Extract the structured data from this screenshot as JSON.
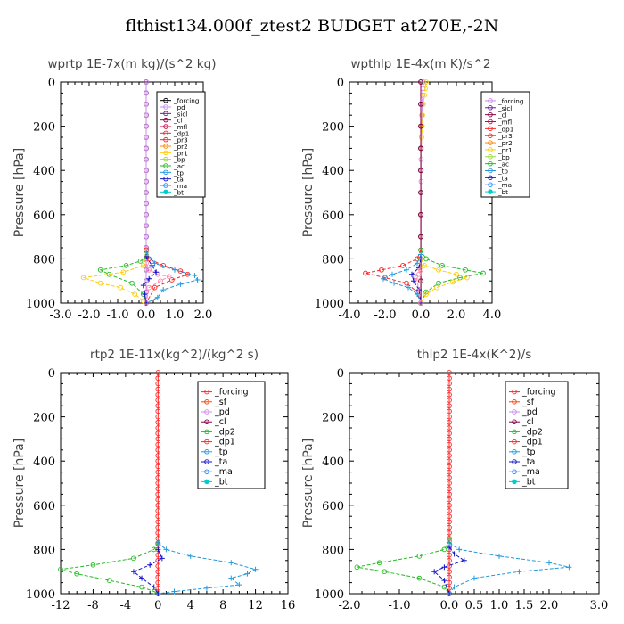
{
  "figure_title": "flthist134.000f_ztest2  BUDGET at270E,-2N",
  "chart_data": [
    {
      "type": "line",
      "title": "wprtp   1E-7x(m kg)/(s^2 kg)",
      "ylabel": "Pressure [hPa]",
      "xlim": [
        -3.0,
        2.0
      ],
      "ylim": [
        1000,
        0
      ],
      "xticks": [
        "-3.0",
        "-1.0",
        "-2.0",
        "0.0",
        "1.0",
        "2.0"
      ],
      "xtick_values": [
        -3,
        -1,
        -2,
        0,
        1,
        2
      ],
      "yticks": [
        "0",
        "200",
        "400",
        "600",
        "800",
        "1000"
      ],
      "ytick_values": [
        0,
        200,
        400,
        600,
        800,
        1000
      ],
      "legend": [
        "_forcing",
        "_pd",
        "_sicl",
        "_cl",
        "_mfl",
        "_dp1",
        "_pr3",
        "_pr2",
        "_pr1",
        "_bp",
        "_ac",
        "_tp",
        "_ta",
        "_ma",
        "_bt"
      ],
      "series": [
        {
          "name": "_forcing",
          "color": "#000000",
          "marker": "circle",
          "x": [
            0,
            0,
            0,
            0,
            0,
            0,
            0,
            0,
            0,
            0,
            0,
            0,
            0,
            0,
            0,
            0,
            0,
            0,
            0,
            0,
            0
          ],
          "y": [
            0,
            50,
            100,
            150,
            200,
            250,
            300,
            350,
            400,
            450,
            500,
            550,
            600,
            650,
            700,
            750,
            800,
            850,
            900,
            950,
            1000
          ]
        },
        {
          "name": "_cl",
          "color": "#8b0045",
          "marker": "circle",
          "x": [
            0,
            0,
            0,
            0,
            0,
            0,
            0,
            0,
            0,
            0,
            0,
            0,
            0,
            0,
            0,
            0,
            0,
            0,
            0,
            0,
            0
          ],
          "y": [
            0,
            50,
            100,
            150,
            200,
            250,
            300,
            350,
            400,
            450,
            500,
            550,
            600,
            650,
            700,
            750,
            800,
            850,
            900,
            950,
            1000
          ]
        },
        {
          "name": "_pd",
          "color": "#cc88ee",
          "marker": "circle",
          "x": [
            0,
            0,
            0,
            0,
            0,
            0,
            0,
            0,
            0,
            0,
            0,
            0,
            0,
            0,
            0,
            0,
            0,
            0,
            0,
            0,
            0
          ],
          "y": [
            0,
            50,
            100,
            150,
            200,
            250,
            300,
            350,
            400,
            450,
            500,
            550,
            600,
            650,
            700,
            750,
            800,
            850,
            900,
            950,
            1000
          ]
        },
        {
          "name": "_ac",
          "color": "#22bb22",
          "marker": "circle",
          "x": [
            0,
            0,
            -0.2,
            -0.7,
            -1.6,
            -1.3,
            -0.5,
            -0.1,
            0
          ],
          "y": [
            760,
            790,
            810,
            830,
            850,
            870,
            910,
            960,
            1000
          ]
        },
        {
          "name": "_pr1",
          "color": "#ffcc00",
          "marker": "circle",
          "x": [
            0,
            -0.1,
            -0.8,
            -2.2,
            -1.6,
            -0.9,
            -0.4,
            -0.1,
            0
          ],
          "y": [
            780,
            830,
            860,
            885,
            910,
            930,
            960,
            990,
            1000
          ]
        },
        {
          "name": "_dp1",
          "color": "#ff2222",
          "marker": "circle",
          "x": [
            0,
            0.1,
            0.6,
            1.2,
            1.45,
            0.9,
            0.3,
            0
          ],
          "y": [
            760,
            800,
            830,
            855,
            870,
            895,
            930,
            1000
          ]
        },
        {
          "name": "_bp",
          "color": "#ff88aa",
          "marker": "circle",
          "x": [
            0,
            0.1,
            0.4,
            0.8,
            0.5,
            0.1,
            0
          ],
          "y": [
            820,
            850,
            870,
            880,
            900,
            930,
            1000
          ]
        },
        {
          "name": "_tp",
          "color": "#2299dd",
          "marker": "star",
          "x": [
            0,
            0.3,
            1.0,
            1.7,
            1.8,
            1.2,
            0.6,
            0.4,
            0
          ],
          "y": [
            770,
            820,
            850,
            875,
            895,
            915,
            940,
            975,
            1000
          ]
        },
        {
          "name": "_ta",
          "color": "#1111cc",
          "marker": "plus",
          "x": [
            0,
            0.2,
            0.35,
            0.1,
            -0.1,
            -0.05,
            0
          ],
          "y": [
            790,
            830,
            860,
            890,
            920,
            960,
            1000
          ]
        }
      ]
    },
    {
      "type": "line",
      "title": "wpthlp   1E-4x(m K)/s^2",
      "ylabel": "Pressure [hPa]",
      "xlim": [
        -4.0,
        4.0
      ],
      "ylim": [
        1000,
        0
      ],
      "xticks": [
        "-4.0",
        "-2.0",
        "0.0",
        "2.0",
        "4.0"
      ],
      "xtick_values": [
        -4,
        -2,
        0,
        2,
        4
      ],
      "yticks": [
        "0",
        "200",
        "400",
        "600",
        "800",
        "1000"
      ],
      "ytick_values": [
        0,
        200,
        400,
        600,
        800,
        1000
      ],
      "legend": [
        "_forcing",
        "_sicl",
        "_cl",
        "_mfl",
        "_dp1",
        "_pr3",
        "_pr2",
        "_pr1",
        "_bp",
        "_ac",
        "_tp",
        "_ta",
        "_ma",
        "_bt"
      ],
      "series": [
        {
          "name": "_pd",
          "color": "#cc88ee",
          "marker": "circle",
          "x": [
            0.15,
            0.12,
            0.1,
            0.08,
            0.06,
            0.05,
            0.04,
            0.03,
            0.02,
            0.02,
            0.02,
            0.02,
            0.02,
            0.02,
            0.02,
            0.02,
            0.02
          ],
          "y": [
            0,
            30,
            60,
            100,
            150,
            200,
            250,
            300,
            350,
            400,
            450,
            500,
            600,
            700,
            800,
            900,
            1000
          ]
        },
        {
          "name": "_pr1",
          "color": "#ffcc00",
          "marker": "circle",
          "x": [
            0.3,
            0.25,
            0.2,
            0.15,
            0.1,
            0.08,
            0.05,
            0.03,
            0.02,
            0.01,
            0,
            0,
            0,
            0,
            0,
            0
          ],
          "y": [
            0,
            30,
            60,
            100,
            150,
            200,
            250,
            300,
            400,
            500,
            600,
            700,
            800,
            850,
            900,
            1000
          ]
        },
        {
          "name": "_forcing",
          "color": "#000000",
          "marker": "circle",
          "x": [
            0,
            0,
            0,
            0,
            0,
            0,
            0,
            0,
            0,
            0,
            0
          ],
          "y": [
            0,
            100,
            200,
            300,
            400,
            500,
            600,
            700,
            800,
            900,
            1000
          ]
        },
        {
          "name": "_cl",
          "color": "#8b0045",
          "marker": "circle",
          "x": [
            0,
            0,
            0,
            0,
            0,
            0,
            0,
            0,
            0,
            0,
            0
          ],
          "y": [
            0,
            100,
            200,
            300,
            400,
            500,
            600,
            700,
            800,
            900,
            1000
          ]
        },
        {
          "name": "_dp1",
          "color": "#ff2222",
          "marker": "circle",
          "x": [
            0,
            -0.2,
            -1.0,
            -2.2,
            -3.1,
            -2.0,
            -0.8,
            -0.2,
            0
          ],
          "y": [
            760,
            800,
            830,
            850,
            865,
            885,
            910,
            950,
            1000
          ]
        },
        {
          "name": "_ac",
          "color": "#22bb22",
          "marker": "circle",
          "x": [
            0,
            0.3,
            1.2,
            2.5,
            3.5,
            2.2,
            1.0,
            0.3,
            0
          ],
          "y": [
            760,
            800,
            830,
            850,
            865,
            885,
            910,
            950,
            1000
          ]
        },
        {
          "name": "_pr3",
          "color": "#ffcc00",
          "marker": "circle",
          "x": [
            0,
            0.2,
            1.0,
            2.0,
            2.6,
            1.8,
            0.9,
            0.3,
            0
          ],
          "y": [
            800,
            830,
            850,
            870,
            885,
            905,
            930,
            960,
            1000
          ]
        },
        {
          "name": "_tp",
          "color": "#2299dd",
          "marker": "star",
          "x": [
            0,
            -0.2,
            -0.8,
            -1.6,
            -2.1,
            -1.5,
            -0.7,
            -0.2,
            0
          ],
          "y": [
            780,
            820,
            850,
            870,
            890,
            910,
            930,
            960,
            1000
          ]
        },
        {
          "name": "_ta",
          "color": "#1111cc",
          "marker": "plus",
          "x": [
            0,
            -0.1,
            -0.5,
            -0.4,
            -0.1,
            0
          ],
          "y": [
            800,
            840,
            870,
            900,
            940,
            1000
          ]
        },
        {
          "name": "_bp",
          "color": "#ff88aa",
          "marker": "circle",
          "x": [
            0,
            -0.1,
            -0.3,
            -0.2,
            0
          ],
          "y": [
            850,
            870,
            880,
            900,
            1000
          ]
        }
      ]
    },
    {
      "type": "line",
      "title": "rtp2   1E-11x(kg^2)/(kg^2 s)",
      "ylabel": "Pressure [hPa]",
      "xlim": [
        -12,
        16
      ],
      "ylim": [
        1000,
        0
      ],
      "xticks": [
        "-12",
        "-8",
        "-4",
        "0",
        "4",
        "8",
        "12",
        "16"
      ],
      "xtick_values": [
        -12,
        -8,
        -4,
        0,
        4,
        8,
        12,
        16
      ],
      "yticks": [
        "0",
        "200",
        "400",
        "600",
        "800",
        "1000"
      ],
      "ytick_values": [
        0,
        200,
        400,
        600,
        800,
        1000
      ],
      "legend": [
        "_forcing",
        "_sf",
        "_pd",
        "_cl",
        "_dp2",
        "_dp1",
        "_tp",
        "_ta",
        "_ma",
        "_bt"
      ],
      "series": [
        {
          "name": "_forcing",
          "color": "#ff2222",
          "marker": "circle",
          "x": [
            0,
            0,
            0,
            0,
            0,
            0,
            0,
            0,
            0,
            0,
            0,
            0,
            0,
            0,
            0,
            0,
            0,
            0,
            0,
            0,
            0,
            0,
            0,
            0,
            0,
            0,
            0,
            0,
            0,
            0,
            0,
            0,
            0,
            0,
            0,
            0,
            0,
            0,
            0,
            0,
            0
          ],
          "y": [
            0,
            25,
            50,
            75,
            100,
            125,
            150,
            175,
            200,
            225,
            250,
            275,
            300,
            325,
            350,
            375,
            400,
            425,
            450,
            475,
            500,
            525,
            550,
            575,
            600,
            625,
            650,
            675,
            700,
            725,
            750,
            775,
            800,
            825,
            850,
            875,
            900,
            925,
            950,
            975,
            1000
          ]
        },
        {
          "name": "_dp1",
          "color": "#22bb22",
          "marker": "circle",
          "x": [
            0,
            -0.5,
            -3,
            -8,
            -12,
            -10,
            -6,
            -2,
            -0.5,
            0
          ],
          "y": [
            770,
            800,
            840,
            870,
            890,
            910,
            940,
            970,
            990,
            1000
          ]
        },
        {
          "name": "_tp",
          "color": "#2299dd",
          "marker": "star",
          "x": [
            0,
            1,
            4,
            9,
            12,
            11,
            9,
            10,
            6,
            2,
            0
          ],
          "y": [
            770,
            800,
            830,
            860,
            890,
            910,
            930,
            960,
            975,
            990,
            1000
          ]
        },
        {
          "name": "_ta",
          "color": "#1111cc",
          "marker": "plus",
          "x": [
            0,
            0.5,
            -1,
            -3,
            -2,
            -0.5,
            0
          ],
          "y": [
            800,
            840,
            870,
            900,
            930,
            970,
            1000
          ]
        }
      ]
    },
    {
      "type": "line",
      "title": "thlp2   1E-4x(K^2)/s",
      "ylabel": "Pressure [hPa]",
      "xlim": [
        -2.0,
        3.0
      ],
      "ylim": [
        1000,
        0
      ],
      "xticks": [
        "-2.0",
        "-1.0",
        "0.0",
        "0.5",
        "1.0",
        "1.5",
        "2.0",
        "3.0"
      ],
      "xtick_values": [
        -2,
        -1,
        0,
        0.5,
        1,
        1.5,
        2,
        3
      ],
      "yticks": [
        "0",
        "200",
        "400",
        "600",
        "800",
        "1000"
      ],
      "ytick_values": [
        0,
        200,
        400,
        600,
        800,
        1000
      ],
      "legend": [
        "_forcing",
        "_sf",
        "_pd",
        "_cl",
        "_dp2",
        "_dp1",
        "_tp",
        "_ta",
        "_ma",
        "_bt"
      ],
      "series": [
        {
          "name": "_forcing",
          "color": "#ff2222",
          "marker": "circle",
          "x": [
            0,
            0,
            0,
            0,
            0,
            0,
            0,
            0,
            0,
            0,
            0,
            0,
            0,
            0,
            0,
            0,
            0,
            0,
            0,
            0,
            0,
            0,
            0,
            0,
            0,
            0,
            0,
            0,
            0,
            0,
            0,
            0,
            0,
            0,
            0,
            0,
            0,
            0,
            0,
            0,
            0
          ],
          "y": [
            0,
            25,
            50,
            75,
            100,
            125,
            150,
            175,
            200,
            225,
            250,
            275,
            300,
            325,
            350,
            375,
            400,
            425,
            450,
            475,
            500,
            525,
            550,
            575,
            600,
            625,
            650,
            675,
            700,
            725,
            750,
            775,
            800,
            825,
            850,
            875,
            900,
            925,
            950,
            975,
            1000
          ]
        },
        {
          "name": "_dp1",
          "color": "#22bb22",
          "marker": "circle",
          "x": [
            0,
            -0.1,
            -0.6,
            -1.4,
            -1.85,
            -1.3,
            -0.6,
            -0.1,
            0
          ],
          "y": [
            760,
            800,
            830,
            860,
            880,
            900,
            930,
            970,
            1000
          ]
        },
        {
          "name": "_tp",
          "color": "#2299dd",
          "marker": "star",
          "x": [
            0,
            0.2,
            1.0,
            2.0,
            2.4,
            1.4,
            0.5,
            0.1,
            0
          ],
          "y": [
            770,
            800,
            830,
            860,
            880,
            900,
            930,
            970,
            1000
          ]
        },
        {
          "name": "_ta",
          "color": "#1111cc",
          "marker": "plus",
          "x": [
            0,
            0.1,
            0.3,
            -0.1,
            -0.3,
            -0.1,
            0
          ],
          "y": [
            790,
            820,
            850,
            880,
            900,
            940,
            1000
          ]
        }
      ]
    }
  ]
}
